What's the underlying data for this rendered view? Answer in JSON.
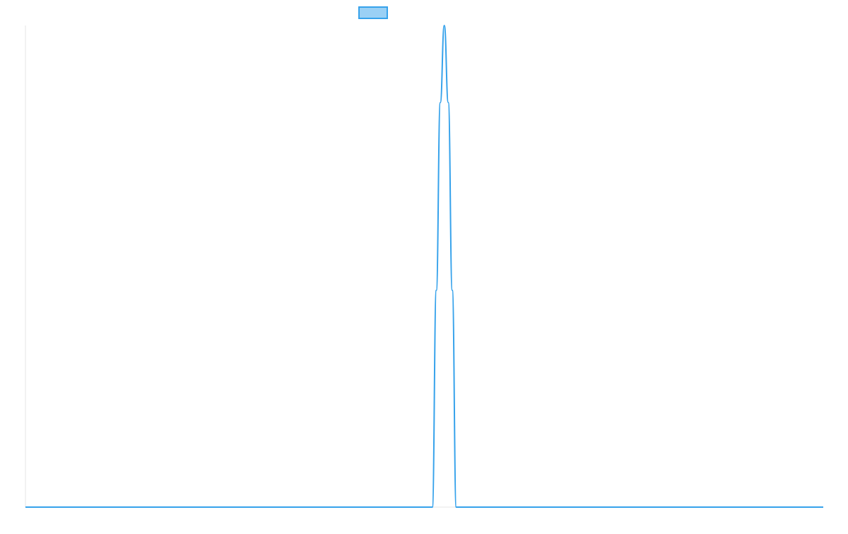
{
  "colors": {
    "series_line": "#36a2eb",
    "legend_fill": "#9ad0f5",
    "axis": "#e5e5e5",
    "background": "#ffffff"
  },
  "chart_data": {
    "type": "line",
    "title": "",
    "xlabel": "",
    "ylabel": "",
    "legend_position": "top",
    "grid": false,
    "x": [
      0,
      10,
      20,
      30,
      40,
      50,
      51,
      51.5,
      52,
      52.5,
      53,
      53.5,
      54,
      55,
      60,
      70,
      80,
      90,
      100
    ],
    "xlim": [
      0,
      100
    ],
    "ylim": [
      0,
      1
    ],
    "series": [
      {
        "values": [
          0,
          0,
          0,
          0,
          0,
          0,
          0,
          0.45,
          0.84,
          1.0,
          0.84,
          0.45,
          0,
          0,
          0,
          0,
          0,
          0,
          0
        ],
        "color": "#36a2eb",
        "legend_swatch_color": "#9ad0f5"
      }
    ]
  }
}
